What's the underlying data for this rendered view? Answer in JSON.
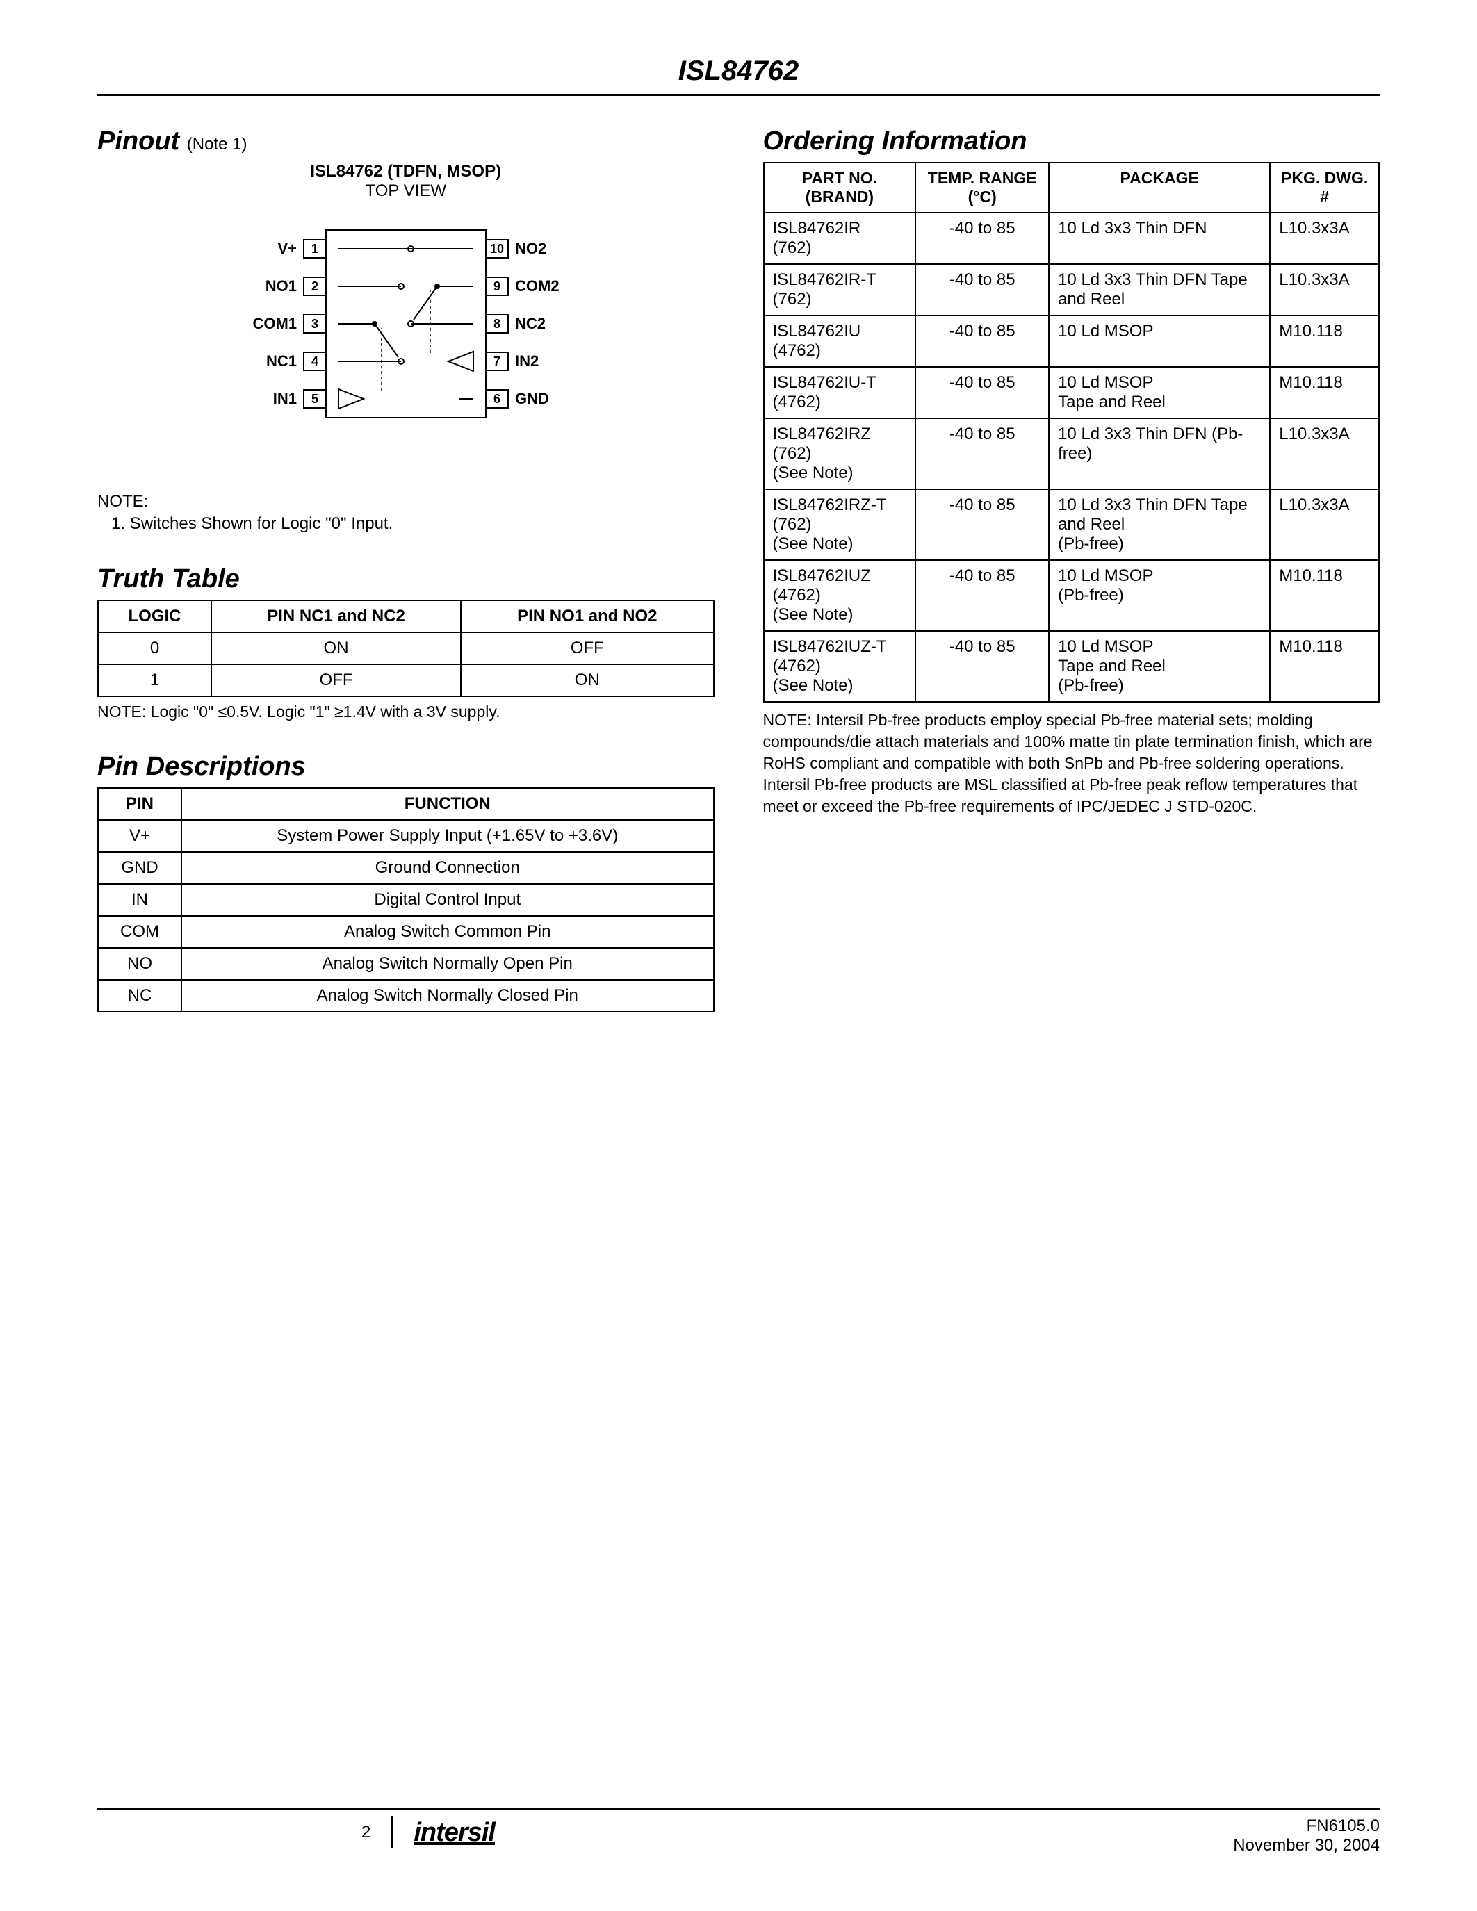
{
  "header": {
    "title": "ISL84762"
  },
  "pinout": {
    "section_title": "Pinout",
    "note_ref": "(Note 1)",
    "caption_bold": "ISL84762 (TDFN, MSOP)",
    "caption_sub": "TOP VIEW",
    "left_pins": [
      {
        "n": "1",
        "label": "V+"
      },
      {
        "n": "2",
        "label": "NO1"
      },
      {
        "n": "3",
        "label": "COM1"
      },
      {
        "n": "4",
        "label": "NC1"
      },
      {
        "n": "5",
        "label": "IN1"
      }
    ],
    "right_pins": [
      {
        "n": "10",
        "label": "NO2"
      },
      {
        "n": "9",
        "label": "COM2"
      },
      {
        "n": "8",
        "label": "NC2"
      },
      {
        "n": "7",
        "label": "IN2"
      },
      {
        "n": "6",
        "label": "GND"
      }
    ],
    "note_label": "NOTE:",
    "note_item": "1. Switches Shown for Logic \"0\" Input."
  },
  "truth": {
    "section_title": "Truth Table",
    "headers": [
      "LOGIC",
      "PIN NC1 and NC2",
      "PIN NO1 and NO2"
    ],
    "rows": [
      [
        "0",
        "ON",
        "OFF"
      ],
      [
        "1",
        "OFF",
        "ON"
      ]
    ],
    "note": "NOTE:   Logic \"0\" ≤0.5V.  Logic \"1\" ≥1.4V with a 3V supply."
  },
  "pindesc": {
    "section_title": "Pin Descriptions",
    "headers": [
      "PIN",
      "FUNCTION"
    ],
    "rows": [
      [
        "V+",
        "System Power Supply Input (+1.65V to +3.6V)"
      ],
      [
        "GND",
        "Ground Connection"
      ],
      [
        "IN",
        "Digital Control Input"
      ],
      [
        "COM",
        "Analog Switch Common Pin"
      ],
      [
        "NO",
        "Analog Switch Normally Open Pin"
      ],
      [
        "NC",
        "Analog Switch Normally Closed Pin"
      ]
    ]
  },
  "ordering": {
    "section_title": "Ordering Information",
    "headers": [
      "PART NO. (BRAND)",
      "TEMP. RANGE (°C)",
      "PACKAGE",
      "PKG. DWG. #"
    ],
    "rows": [
      [
        "ISL84762IR\n(762)",
        "-40 to 85",
        "10 Ld 3x3 Thin DFN",
        "L10.3x3A"
      ],
      [
        "ISL84762IR-T\n(762)",
        "-40 to 85",
        "10 Ld 3x3 Thin DFN Tape and Reel",
        "L10.3x3A"
      ],
      [
        "ISL84762IU\n(4762)",
        "-40 to 85",
        "10 Ld MSOP",
        "M10.118"
      ],
      [
        "ISL84762IU-T\n(4762)",
        "-40 to 85",
        "10 Ld MSOP\nTape and Reel",
        "M10.118"
      ],
      [
        "ISL84762IRZ\n(762)\n(See Note)",
        "-40 to 85",
        "10 Ld 3x3 Thin DFN (Pb-free)",
        "L10.3x3A"
      ],
      [
        "ISL84762IRZ-T\n(762)\n(See Note)",
        "-40 to 85",
        "10 Ld 3x3 Thin DFN Tape and Reel\n(Pb-free)",
        "L10.3x3A"
      ],
      [
        "ISL84762IUZ\n(4762)\n(See Note)",
        "-40 to 85",
        "10 Ld MSOP\n(Pb-free)",
        "M10.118"
      ],
      [
        "ISL84762IUZ-T\n(4762)\n(See Note)",
        "-40 to 85",
        "10 Ld MSOP\nTape and Reel\n(Pb-free)",
        "M10.118"
      ]
    ],
    "note": "NOTE:  Intersil Pb-free products employ special Pb-free material sets; molding compounds/die attach materials and 100% matte tin plate termination finish, which are RoHS compliant and compatible with both SnPb and Pb-free soldering operations. Intersil Pb-free products are MSL classified at Pb-free peak reflow temperatures that meet or exceed the Pb-free requirements of IPC/JEDEC J STD-020C."
  },
  "footer": {
    "page": "2",
    "logo": "intersil",
    "docnum": "FN6105.0",
    "date": "November 30, 2004"
  },
  "diagram": {
    "chip_w": 230,
    "chip_h": 270,
    "pin_w": 32,
    "pin_h": 26,
    "label_fontsize": 22,
    "pinnum_fontsize": 18,
    "stroke": "#000",
    "stroke_w": 2,
    "fill": "#fff"
  }
}
